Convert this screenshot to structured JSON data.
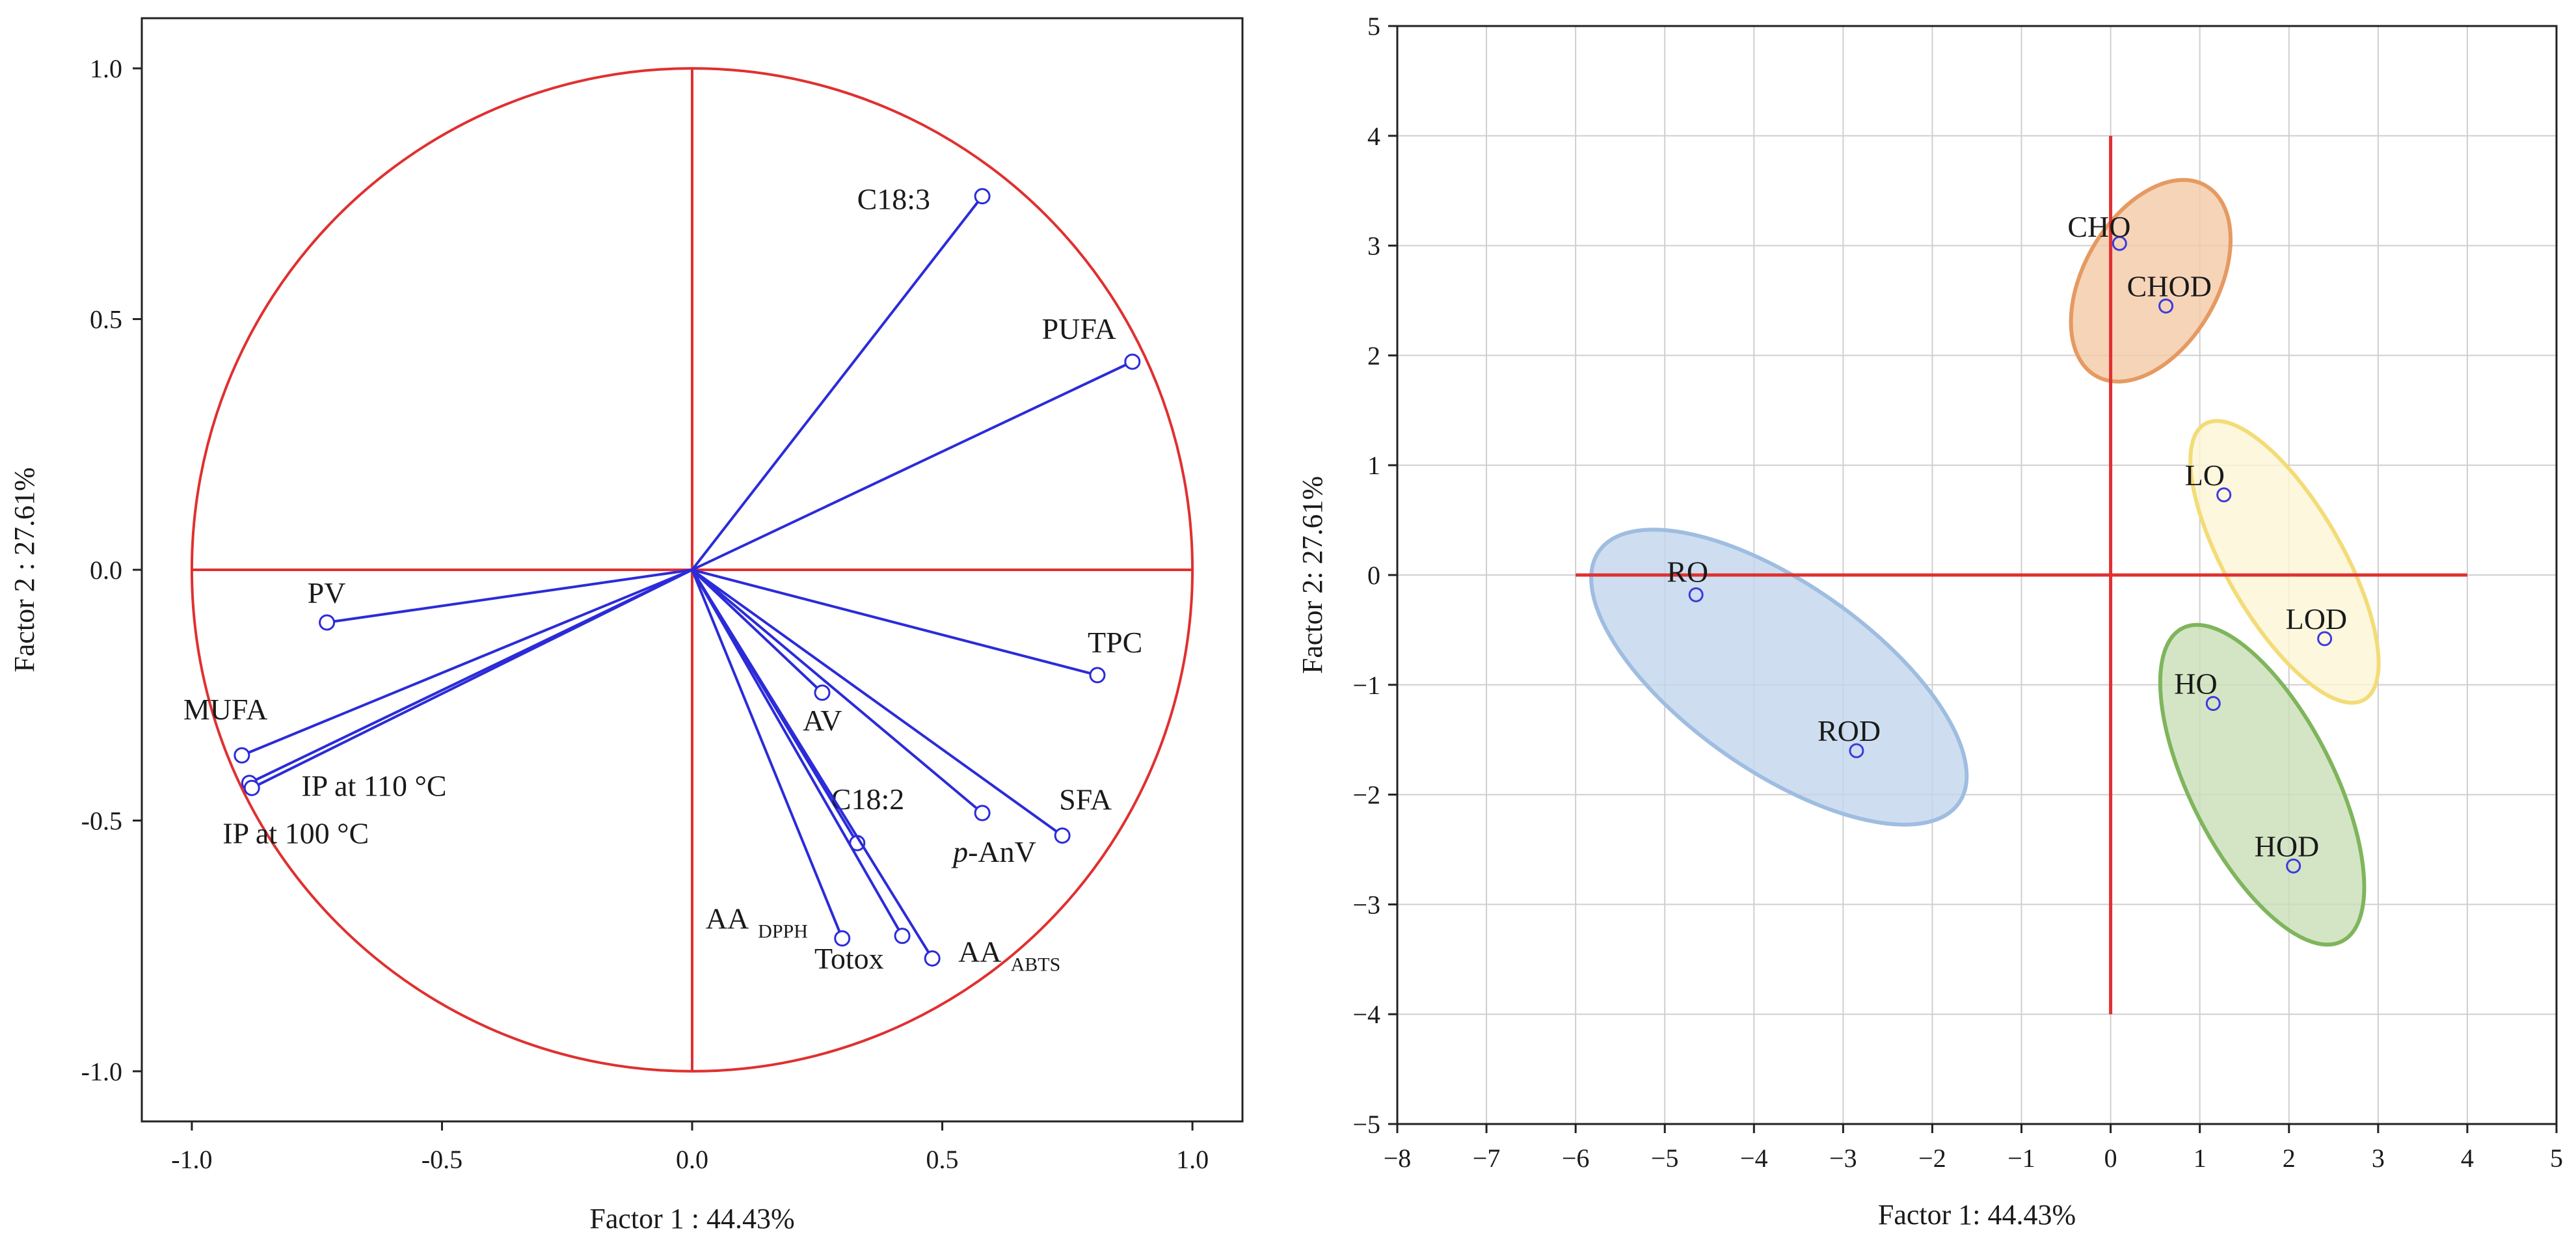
{
  "chart_data": [
    {
      "type": "scatter",
      "subtype": "loading-plot",
      "title": "",
      "xlabel": "Factor 1 : 44.43%",
      "ylabel": "Factor 2 : 27.61%",
      "xlim": [
        -1.1,
        1.1
      ],
      "ylim": [
        -1.1,
        1.1
      ],
      "xticks": [
        -1.0,
        -0.5,
        0.0,
        0.5,
        1.0
      ],
      "yticks": [
        -1.0,
        -0.5,
        0.0,
        0.5,
        1.0
      ],
      "xtick_labels": [
        "-1.0",
        "-0.5",
        "0.0",
        "0.5",
        "1.0"
      ],
      "ytick_labels": [
        "-1.0",
        "-0.5",
        "0.0",
        "0.5",
        "1.0"
      ],
      "grid": false,
      "reference_circle_radius": 1.0,
      "colors": {
        "vectors": "#2b2bd9",
        "circle": "#e03030",
        "axes": "#e03030"
      },
      "vectors": [
        {
          "label": "C18:3",
          "x": 0.58,
          "y": 0.745
        },
        {
          "label": "PUFA",
          "x": 0.88,
          "y": 0.415
        },
        {
          "label": "TPC",
          "x": 0.81,
          "y": -0.21
        },
        {
          "label": "SFA",
          "x": 0.74,
          "y": -0.53
        },
        {
          "label": "-AnV",
          "italic_prefix": "p",
          "x": 0.58,
          "y": -0.485
        },
        {
          "label": "AV",
          "x": 0.26,
          "y": -0.245
        },
        {
          "label": "C18:2",
          "x": 0.33,
          "y": -0.545
        },
        {
          "label": "AA",
          "subscript": "ABTS",
          "x": 0.48,
          "y": -0.775
        },
        {
          "label": "Totox",
          "x": 0.42,
          "y": -0.73
        },
        {
          "label": "AA",
          "subscript": "DPPH",
          "x": 0.3,
          "y": -0.735
        },
        {
          "label": "PV",
          "x": -0.73,
          "y": -0.105
        },
        {
          "label": "MUFA",
          "x": -0.9,
          "y": -0.37
        },
        {
          "label": "IP at 110 °C",
          "x": -0.885,
          "y": -0.425
        },
        {
          "label": "IP at 100 °C",
          "x": -0.88,
          "y": -0.435
        }
      ]
    },
    {
      "type": "scatter",
      "subtype": "score-plot",
      "title": "",
      "xlabel": "Factor 1: 44.43%",
      "ylabel": "Factor 2: 27.61%",
      "xlim": [
        -8,
        5
      ],
      "ylim": [
        -5,
        5
      ],
      "xticks": [
        -8,
        -7,
        -6,
        -5,
        -4,
        -3,
        -2,
        -1,
        0,
        1,
        2,
        3,
        4,
        5
      ],
      "yticks": [
        -5,
        -4,
        -3,
        -2,
        -1,
        0,
        1,
        2,
        3,
        4,
        5
      ],
      "xtick_labels": [
        "−8",
        "−7",
        "−6",
        "−5",
        "−4",
        "−3",
        "−2",
        "−1",
        "0",
        "1",
        "2",
        "3",
        "4",
        "5"
      ],
      "ytick_labels": [
        "−5",
        "−4",
        "−3",
        "−2",
        "−1",
        "0",
        "1",
        "2",
        "3",
        "4",
        "5"
      ],
      "grid": true,
      "reference_lines": {
        "horizontal": {
          "y": 0,
          "x_from": -6,
          "x_to": 4
        },
        "vertical": {
          "x": 0,
          "y_from": -4,
          "y_to": 4
        }
      },
      "points": [
        {
          "label": "CHO",
          "x": 0.1,
          "y": 3.02
        },
        {
          "label": "CHOD",
          "x": 0.62,
          "y": 2.45
        },
        {
          "label": "LO",
          "x": 1.27,
          "y": 0.73
        },
        {
          "label": "LOD",
          "x": 2.4,
          "y": -0.58
        },
        {
          "label": "HO",
          "x": 1.15,
          "y": -1.17
        },
        {
          "label": "HOD",
          "x": 2.05,
          "y": -2.65
        },
        {
          "label": "RO",
          "x": -4.65,
          "y": -0.18
        },
        {
          "label": "ROD",
          "x": -2.85,
          "y": -1.6
        }
      ],
      "groups": [
        {
          "members": [
            "CHO",
            "CHOD"
          ],
          "fill": "#f4c9a6",
          "stroke": "#e59a62",
          "cx": 0.45,
          "cy": 2.68,
          "rx": 0.75,
          "ry": 1.0,
          "angle_deg": -30
        },
        {
          "members": [
            "LO",
            "LOD"
          ],
          "fill": "#fdf5d6",
          "stroke": "#f3dc78",
          "cx": 1.95,
          "cy": 0.12,
          "rx": 0.65,
          "ry": 1.45,
          "angle_deg": 30
        },
        {
          "members": [
            "HO",
            "HOD"
          ],
          "fill": "#c9dfb6",
          "stroke": "#7fb55c",
          "cx": 1.7,
          "cy": -1.91,
          "rx": 0.8,
          "ry": 1.6,
          "angle_deg": 27
        },
        {
          "members": [
            "RO",
            "ROD"
          ],
          "fill": "#c2d6ec",
          "stroke": "#9fbde0",
          "cx": -3.72,
          "cy": -0.93,
          "rx": 1.05,
          "ry": 2.0,
          "angle_deg": 55
        }
      ]
    }
  ]
}
